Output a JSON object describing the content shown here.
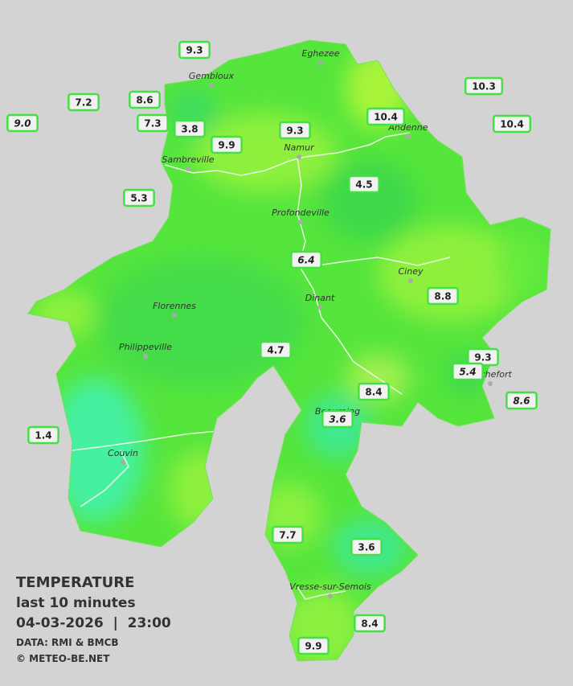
{
  "stations": [
    "9.0",
    "7.2",
    "8.6",
    "9.3",
    "7.3",
    "3.8",
    "9.9",
    "9.3",
    "10.4",
    "10.3",
    "10.4",
    "5.3",
    "4.5",
    "6.4",
    "8.8",
    "4.7",
    "9.3",
    "5.4",
    "8.4",
    "8.6",
    "3.6",
    "1.4",
    "7.7",
    "3.6",
    "8.4",
    "9.9"
  ],
  "towns": [
    "Eghezee",
    "Gembloux",
    "Andenne",
    "Namur",
    "Sambreville",
    "Profondeville",
    "Ciney",
    "Florennes",
    "Dinant",
    "Philippeville",
    "Rochefort",
    "Beauraing",
    "Couvin",
    "Vresse-sur-Semois"
  ],
  "legend": {
    "title": "TEMPERATURE",
    "subtitle": "last 10 minutes",
    "datetime": "04-03-2026  |  23:00",
    "source": "DATA: RMI & BMCB",
    "credit": "© METEO-BE.NET"
  }
}
